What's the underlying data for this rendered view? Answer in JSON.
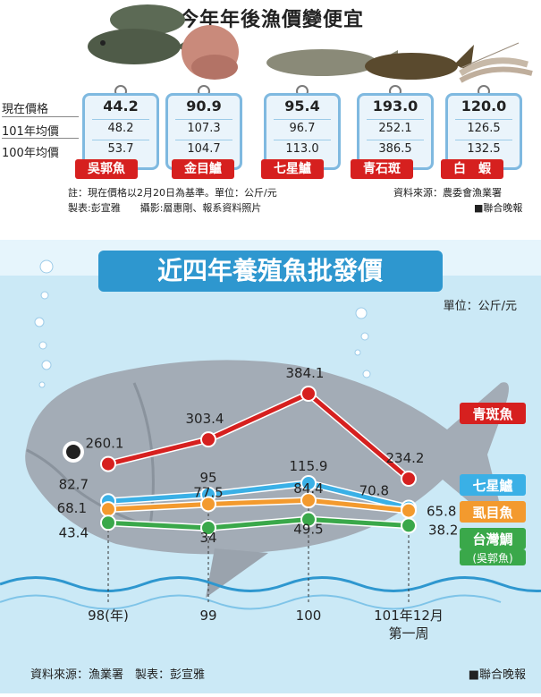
{
  "top": {
    "title": "今年年後漁價變便宜",
    "row_labels": [
      "現在價格",
      "101年均價",
      "100年均價"
    ],
    "fish": [
      {
        "name": "吳郭魚",
        "now": "44.2",
        "y101": "48.2",
        "y100": "53.7"
      },
      {
        "name": "金目鱸",
        "now": "90.9",
        "y101": "107.3",
        "y100": "104.7"
      },
      {
        "name": "七星鱸",
        "now": "95.4",
        "y101": "96.7",
        "y100": "113.0"
      },
      {
        "name": "青石斑",
        "now": "193.0",
        "y101": "252.1",
        "y100": "386.5"
      },
      {
        "name": "白　蝦",
        "now": "120.0",
        "y101": "126.5",
        "y100": "132.5"
      }
    ],
    "note1": "註：現在價格以2月20日為基準。單位：公斤/元",
    "note2": "製表:彭宣雅　　攝影:層惠剛、報系資料照片",
    "source": "資料來源：農委會漁業署",
    "brand": "■聯合晚報"
  },
  "chart_data": {
    "type": "line",
    "title": "近四年養殖魚批發價",
    "unit": "單位：公斤/元",
    "categories": [
      "98(年)",
      "99",
      "100",
      "101年12月\n第一周"
    ],
    "series": [
      {
        "name": "青斑魚",
        "values": [
          260.1,
          303.4,
          384.1,
          234.2
        ],
        "color": "#d6201f"
      },
      {
        "name": "七星鱸",
        "values": [
          82.7,
          95,
          115.9,
          70.8
        ],
        "color": "#3ab0e6"
      },
      {
        "name": "虱目魚",
        "values": [
          68.1,
          77.5,
          84.4,
          65.8
        ],
        "color": "#f39a2e"
      },
      {
        "name": "台灣鯛",
        "subname": "(吳郭魚)",
        "values": [
          43.4,
          34,
          49.5,
          38.2
        ],
        "color": "#3aa84a"
      }
    ],
    "labels": [
      [
        "260.1",
        "303.4",
        "384.1",
        "234.2"
      ],
      [
        "82.7",
        "95",
        "115.9",
        "70.8"
      ],
      [
        "68.1",
        "77.5",
        "84.4",
        "65.8"
      ],
      [
        "43.4",
        "34",
        "49.5",
        "38.2"
      ]
    ],
    "footer_source": "資料來源：漁業署　製表：彭宣雅",
    "footer_brand": "■聯合晚報",
    "colors": {
      "sea": "#bfe3f3",
      "fish_body": "#a3acb6",
      "banner": "#2e97cf"
    }
  }
}
